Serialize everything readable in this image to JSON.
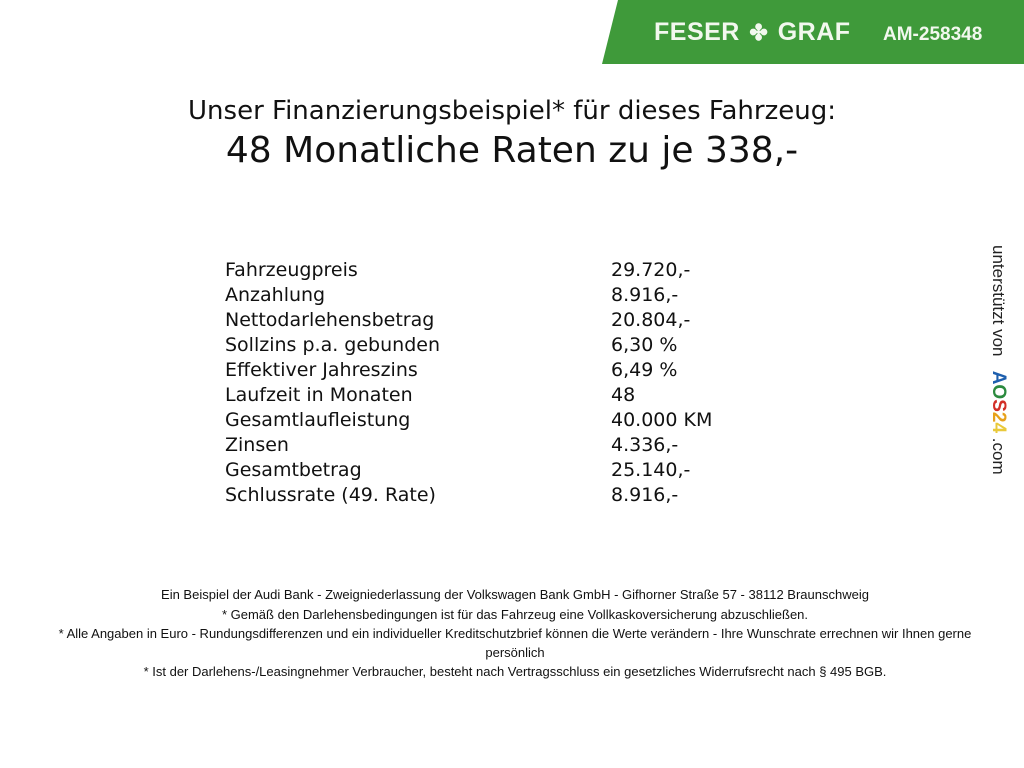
{
  "header": {
    "brand": "FESER",
    "brand2": "GRAF",
    "logo_icon": "clover-icon",
    "reference": "AM-258348",
    "banner_color": "#3f9a3a"
  },
  "title": {
    "line1": "Unser Finanzierungsbeispiel* für dieses Fahrzeug:",
    "line2": "48 Monatliche Raten zu je 338,-"
  },
  "rows": [
    {
      "label": "Fahrzeugpreis",
      "value": "29.720,-"
    },
    {
      "label": "Anzahlung",
      "value": "8.916,-"
    },
    {
      "label": "Nettodarlehensbetrag",
      "value": "20.804,-"
    },
    {
      "label": "Sollzins p.a. gebunden",
      "value": "6,30 %"
    },
    {
      "label": "Effektiver Jahreszins",
      "value": "6,49 %"
    },
    {
      "label": "Laufzeit in Monaten",
      "value": "48"
    },
    {
      "label": "Gesamtlaufleistung",
      "value": "40.000 KM"
    },
    {
      "label": "Zinsen",
      "value": "4.336,-"
    },
    {
      "label": "Gesamtbetrag",
      "value": "25.140,-"
    },
    {
      "label": "Schlussrate (49. Rate)",
      "value": "8.916,-"
    }
  ],
  "footer": [
    "Ein Beispiel der Audi Bank - Zweigniederlassung der Volkswagen Bank GmbH - Gifhorner Straße 57 - 38112 Braunschweig",
    "* Gemäß den Darlehensbedingungen ist für das Fahrzeug eine Vollkaskoversicherung abzuschließen.",
    "* Alle Angaben in Euro - Rundungsdifferenzen und ein individueller Kreditschutzbrief können die Werte verändern - Ihre Wunschrate errechnen wir Ihnen gerne persönlich",
    "* Ist der Darlehens-/Leasingnehmer Verbraucher, besteht nach Vertragsschluss ein gesetzliches Widerrufsrecht nach § 495 BGB."
  ],
  "sidebar": {
    "text": "unterstützt von",
    "logo": {
      "a": "A",
      "o": "O",
      "s": "S",
      "n2": "2",
      "n4": "4"
    },
    "suffix": ".com"
  }
}
